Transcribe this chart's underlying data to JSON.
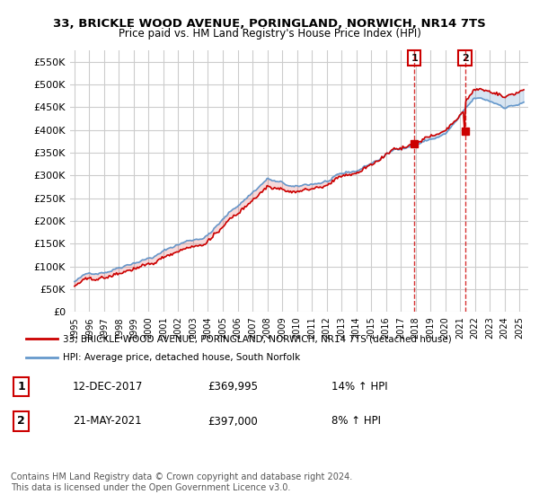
{
  "title": "33, BRICKLE WOOD AVENUE, PORINGLAND, NORWICH, NR14 7TS",
  "subtitle": "Price paid vs. HM Land Registry's House Price Index (HPI)",
  "legend_line1": "33, BRICKLE WOOD AVENUE, PORINGLAND, NORWICH, NR14 7TS (detached house)",
  "legend_line2": "HPI: Average price, detached house, South Norfolk",
  "marker1_date": "12-DEC-2017",
  "marker1_price": 369995,
  "marker1_pct": "14% ↑ HPI",
  "marker2_date": "21-MAY-2021",
  "marker2_price": 397000,
  "marker2_pct": "8% ↑ HPI",
  "footer": "Contains HM Land Registry data © Crown copyright and database right 2024.\nThis data is licensed under the Open Government Licence v3.0.",
  "house_color": "#cc0000",
  "hpi_color": "#6699cc",
  "background_color": "#ffffff",
  "grid_color": "#cccccc",
  "ylim": [
    0,
    575000
  ],
  "yticks": [
    0,
    50000,
    100000,
    150000,
    200000,
    250000,
    300000,
    350000,
    400000,
    450000,
    500000,
    550000
  ]
}
